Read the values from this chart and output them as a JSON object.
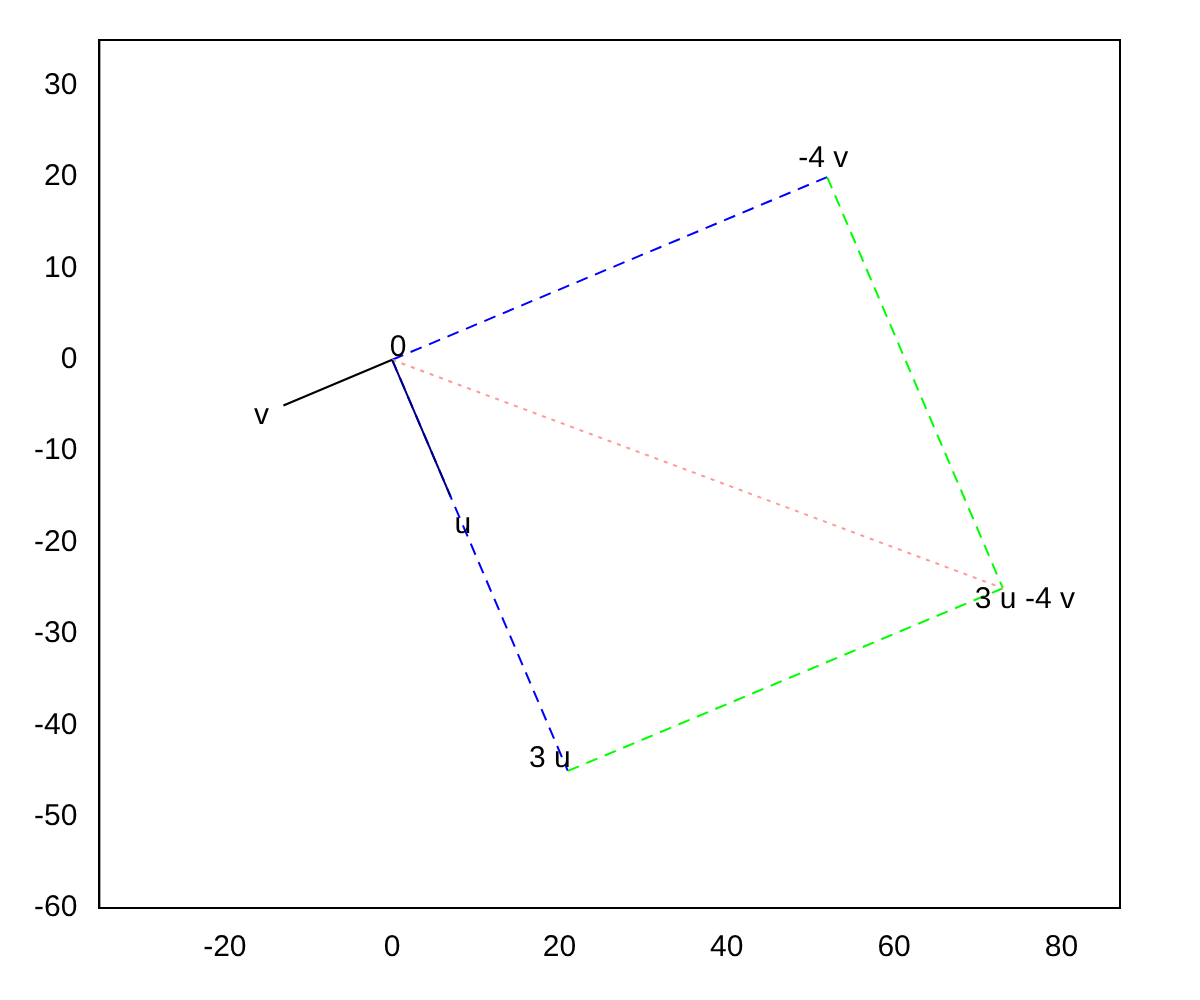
{
  "chart_data": {
    "type": "line",
    "xlim": [
      -35,
      87
    ],
    "ylim": [
      -60,
      35
    ],
    "xticks": [
      -20,
      0,
      20,
      40,
      60,
      80
    ],
    "yticks": [
      -60,
      -50,
      -40,
      -30,
      -20,
      -10,
      0,
      10,
      20,
      30
    ],
    "grid": false,
    "legend": false,
    "marker": "none",
    "series": [
      {
        "color": "#0000ff",
        "line_style": "dashed",
        "x": [
          0,
          52
        ],
        "values": [
          0,
          20
        ]
      },
      {
        "color": "#0000ff",
        "line_style": "dashed",
        "x": [
          0,
          21
        ],
        "values": [
          0,
          -45
        ]
      },
      {
        "color": "#00ff00",
        "line_style": "dashed",
        "x": [
          52,
          73
        ],
        "values": [
          20,
          -25
        ]
      },
      {
        "color": "#00ff00",
        "line_style": "dashed",
        "x": [
          21,
          73
        ],
        "values": [
          -45,
          -25
        ]
      },
      {
        "color": "#ff9999",
        "line_style": "dotted",
        "x": [
          0,
          73
        ],
        "values": [
          0,
          -25
        ]
      },
      {
        "color": "#000080",
        "line_style": "solid",
        "x": [
          0,
          7
        ],
        "values": [
          0,
          -15
        ]
      },
      {
        "color": "#000000",
        "line_style": "solid",
        "x": [
          0,
          -13
        ],
        "values": [
          0,
          -5
        ]
      }
    ],
    "annotations": [
      {
        "text": "0",
        "x": 0,
        "y": 0
      },
      {
        "text": "v",
        "x": -13,
        "y": -5
      },
      {
        "text": "u",
        "x": 7,
        "y": -15
      },
      {
        "text": "-4 v",
        "x": 52,
        "y": 20
      },
      {
        "text": "3 u",
        "x": 21,
        "y": -45
      },
      {
        "text": "3 u -4 v",
        "x": 73,
        "y": -25
      }
    ]
  }
}
